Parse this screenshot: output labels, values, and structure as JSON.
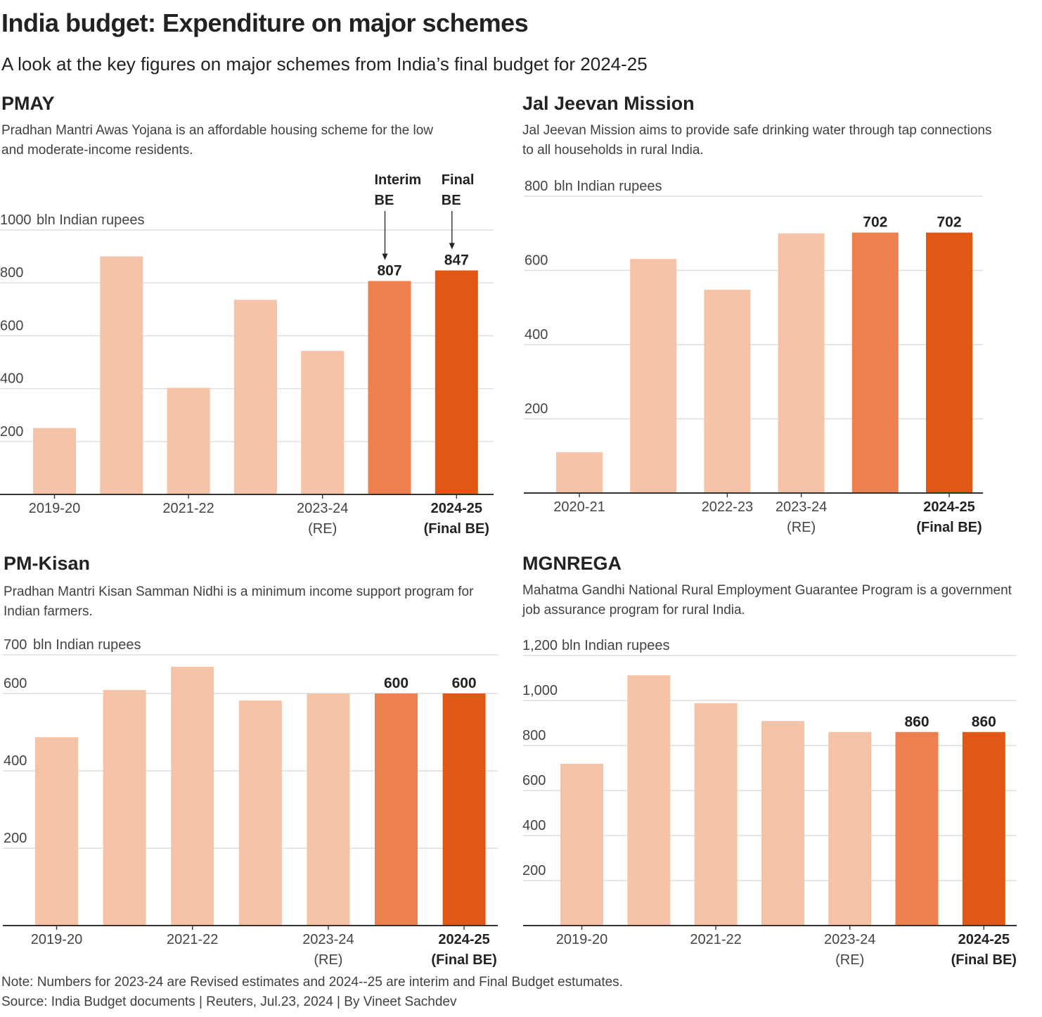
{
  "header": {
    "title": "India budget: Expenditure on major schemes",
    "subtitle": "A look at the key figures on major schemes from India’s final budget for 2024-25"
  },
  "colors": {
    "historical": "#F5C3A8",
    "interim_be": "#EE7F4F",
    "final_be": "#E35714"
  },
  "chart_data": [
    {
      "id": "pmay",
      "type": "bar",
      "title": "PMAY",
      "description": "Pradhan Mantri Awas Yojana  is an affordable housing scheme for the low and moderate-income residents.",
      "ylabel": "bln Indian rupees",
      "ylim": [
        0,
        1000
      ],
      "yticks": [
        200,
        400,
        600,
        800,
        1000
      ],
      "ytick_labels": [
        "200",
        "400",
        "600",
        "800",
        "1000"
      ],
      "categories": [
        "2019-20",
        "2020-21",
        "2021-22",
        "2022-23",
        "2023-24 (RE)",
        "2024-25 (Interim BE)",
        "2024-25 (Final BE)"
      ],
      "values": [
        251,
        900,
        403,
        736,
        543,
        807,
        847
      ],
      "bar_kind": [
        "historical",
        "historical",
        "historical",
        "historical",
        "historical",
        "interim_be",
        "final_be"
      ],
      "data_labels": [
        null,
        null,
        null,
        null,
        null,
        "807",
        "847"
      ],
      "xtick_labels": [
        {
          "index": 0,
          "lines": [
            "2019-20"
          ],
          "bold": false
        },
        {
          "index": 2,
          "lines": [
            "2021-22"
          ],
          "bold": false
        },
        {
          "index": 4,
          "lines": [
            "2023-24",
            "(RE)"
          ],
          "bold": false
        },
        {
          "index": 6,
          "lines": [
            "2024-25",
            "(Final BE)"
          ],
          "bold": true
        }
      ],
      "annotations": [
        {
          "index": 5,
          "lines": [
            "Interim",
            "BE"
          ]
        },
        {
          "index": 6,
          "lines": [
            "Final",
            "BE"
          ]
        }
      ],
      "grid": true
    },
    {
      "id": "jal-jeevan",
      "type": "bar",
      "title": "Jal Jeevan Mission",
      "description": "Jal Jeevan Mission aims to provide safe drinking water through tap connections to all households in rural India.",
      "ylabel": "bln Indian rupees",
      "ylim": [
        0,
        800
      ],
      "yticks": [
        200,
        400,
        600,
        800
      ],
      "ytick_labels": [
        "200",
        "400",
        "600",
        "800"
      ],
      "categories": [
        "2020-21",
        "2021-22",
        "2022-23",
        "2023-24 (RE)",
        "2024-25 (Interim BE)",
        "2024-25 (Final BE)"
      ],
      "values": [
        110,
        631,
        548,
        700,
        702,
        702
      ],
      "bar_kind": [
        "historical",
        "historical",
        "historical",
        "historical",
        "interim_be",
        "final_be"
      ],
      "data_labels": [
        null,
        null,
        null,
        null,
        "702",
        "702"
      ],
      "xtick_labels": [
        {
          "index": 0,
          "lines": [
            "2020-21"
          ],
          "bold": false
        },
        {
          "index": 2,
          "lines": [
            "2022-23"
          ],
          "bold": false
        },
        {
          "index": 3,
          "lines": [
            "2023-24",
            "(RE)"
          ],
          "bold": false
        },
        {
          "index": 5,
          "lines": [
            "2024-25",
            "(Final BE)"
          ],
          "bold": true
        }
      ],
      "annotations": [],
      "grid": true
    },
    {
      "id": "pm-kisan",
      "type": "bar",
      "title": "PM-Kisan",
      "description": "Pradhan Mantri Kisan Samman Nidhi is a minimum income support program for Indian farmers.",
      "ylabel": "bln Indian rupees",
      "ylim": [
        0,
        700
      ],
      "yticks": [
        200,
        400,
        600,
        700
      ],
      "ytick_labels": [
        "200",
        "400",
        "600",
        "700"
      ],
      "categories": [
        "2019-20",
        "2020-21",
        "2021-22",
        "2022-23",
        "2023-24 (RE)",
        "2024-25 (Interim BE)",
        "2024-25 (Final BE)"
      ],
      "values": [
        487,
        609,
        669,
        582,
        600,
        600,
        600
      ],
      "bar_kind": [
        "historical",
        "historical",
        "historical",
        "historical",
        "historical",
        "interim_be",
        "final_be"
      ],
      "data_labels": [
        null,
        null,
        null,
        null,
        null,
        "600",
        "600"
      ],
      "xtick_labels": [
        {
          "index": 0,
          "lines": [
            "2019-20"
          ],
          "bold": false
        },
        {
          "index": 2,
          "lines": [
            "2021-22"
          ],
          "bold": false
        },
        {
          "index": 4,
          "lines": [
            "2023-24",
            "(RE)"
          ],
          "bold": false
        },
        {
          "index": 6,
          "lines": [
            "2024-25",
            "(Final BE)"
          ],
          "bold": true
        }
      ],
      "annotations": [],
      "grid": true
    },
    {
      "id": "mgnrega",
      "type": "bar",
      "title": "MGNREGA",
      "description": "Mahatma Gandhi National Rural Employment Guarantee Program is a government job assurance program for rural India.",
      "ylabel": "bln Indian rupees",
      "ylim": [
        0,
        1200
      ],
      "yticks": [
        200,
        400,
        600,
        800,
        1000,
        1200
      ],
      "ytick_labels": [
        "200",
        "400",
        "600",
        "800",
        "1,000",
        "1,200"
      ],
      "categories": [
        "2019-20",
        "2020-21",
        "2021-22",
        "2022-23",
        "2023-24 (RE)",
        "2024-25 (Interim BE)",
        "2024-25 (Final BE)"
      ],
      "values": [
        719,
        1112,
        988,
        909,
        860,
        860,
        860
      ],
      "bar_kind": [
        "historical",
        "historical",
        "historical",
        "historical",
        "historical",
        "interim_be",
        "final_be"
      ],
      "data_labels": [
        null,
        null,
        null,
        null,
        null,
        "860",
        "860"
      ],
      "xtick_labels": [
        {
          "index": 0,
          "lines": [
            "2019-20"
          ],
          "bold": false
        },
        {
          "index": 2,
          "lines": [
            "2021-22"
          ],
          "bold": false
        },
        {
          "index": 4,
          "lines": [
            "2023-24",
            "(RE)"
          ],
          "bold": false
        },
        {
          "index": 6,
          "lines": [
            "2024-25",
            "(Final BE)"
          ],
          "bold": true
        }
      ],
      "annotations": [],
      "grid": true
    }
  ],
  "footer": {
    "note": "Note: Numbers for 2023-24 are Revised estimates and 2024--25 are interim and Final Budget estumates.",
    "source": "Source: India Budget documents | Reuters, Jul.23, 2024 | By Vineet Sachdev"
  }
}
